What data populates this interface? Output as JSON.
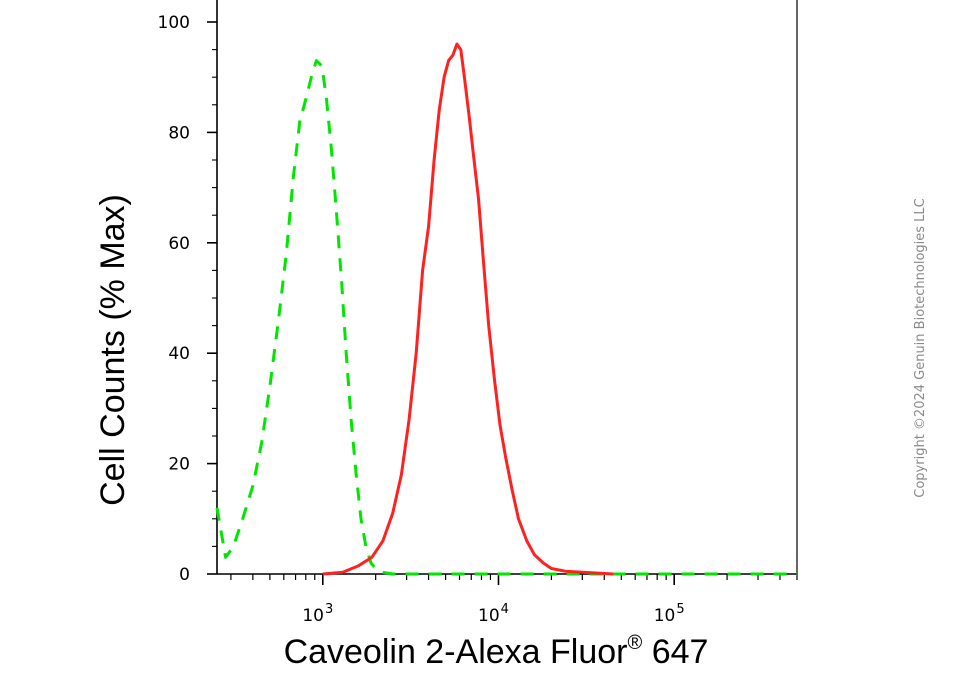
{
  "chart_data": {
    "type": "line",
    "title": "",
    "xlabel": {
      "main": "Caveolin 2-Alexa Fluor",
      "sup": "®",
      "tail": " 647"
    },
    "ylabel": "Cell Counts (% Max)",
    "xscale": "log",
    "xlim": [
      250,
      500000
    ],
    "ylim": [
      0,
      100
    ],
    "yticks": [
      {
        "value": 0,
        "label": "0"
      },
      {
        "value": 20,
        "label": "20"
      },
      {
        "value": 40,
        "label": "40"
      },
      {
        "value": 60,
        "label": "60"
      },
      {
        "value": 80,
        "label": "80"
      },
      {
        "value": 100,
        "label": "100"
      }
    ],
    "xticks": [
      {
        "value": 1000,
        "base": "10",
        "exp": "3"
      },
      {
        "value": 10000,
        "base": "10",
        "exp": "4"
      },
      {
        "value": 100000,
        "base": "10",
        "exp": "5"
      }
    ],
    "grid": false,
    "legend": "none",
    "series": [
      {
        "color": "#00e600",
        "style": "dashed",
        "x": [
          250,
          280,
          310,
          350,
          400,
          450,
          500,
          560,
          620,
          680,
          740,
          800,
          860,
          920,
          990,
          1050,
          1120,
          1200,
          1280,
          1360,
          1450,
          1550,
          1650,
          1760,
          1880,
          2000,
          2200,
          2500,
          3000,
          10000,
          100000,
          500000
        ],
        "y": [
          12,
          3,
          5,
          10,
          16,
          24,
          34,
          46,
          58,
          72,
          82,
          86,
          90,
          93,
          92,
          86,
          77,
          65,
          53,
          40,
          28,
          18,
          10,
          5,
          2,
          1,
          0.3,
          0,
          0,
          0,
          0,
          0
        ]
      },
      {
        "color": "#ff2020",
        "style": "solid",
        "x": [
          1000,
          1300,
          1600,
          1900,
          2200,
          2500,
          2800,
          3100,
          3400,
          3700,
          4000,
          4300,
          4600,
          4900,
          5200,
          5500,
          5800,
          6100,
          6400,
          6800,
          7200,
          7700,
          8200,
          8800,
          9500,
          10200,
          11000,
          12000,
          13000,
          14500,
          16000,
          18000,
          20000,
          24000,
          30000,
          45000
        ],
        "y": [
          0,
          0.3,
          1.5,
          3,
          6,
          11,
          18,
          28,
          40,
          55,
          63,
          75,
          84,
          90,
          93,
          94,
          96,
          95,
          90,
          83,
          76,
          68,
          57,
          45,
          35,
          27,
          21,
          15,
          10,
          6,
          3.5,
          2,
          1,
          0.5,
          0.3,
          0
        ]
      }
    ]
  },
  "copyright": "Copyright ©2024 Genuin Biotechnologies LLC"
}
